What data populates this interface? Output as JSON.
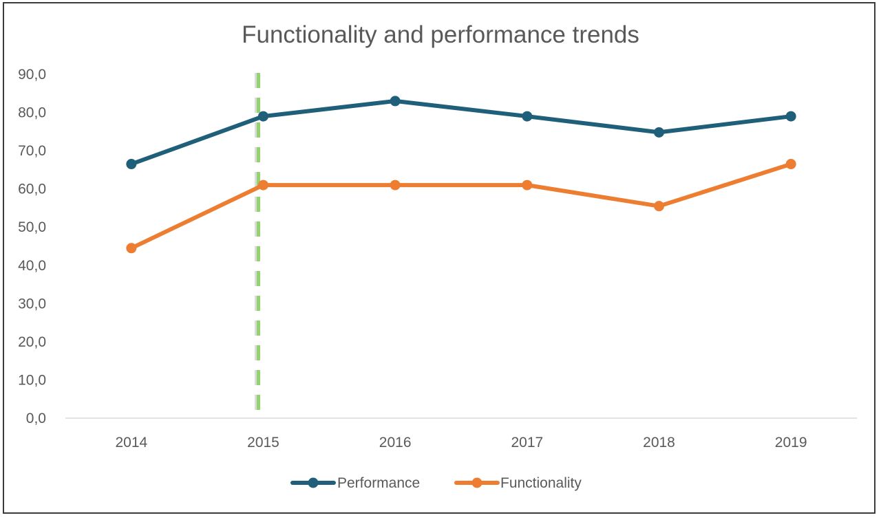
{
  "chart_data": {
    "type": "line",
    "title": "Functionality and performance trends",
    "categories": [
      "2014",
      "2015",
      "2016",
      "2017",
      "2018",
      "2019"
    ],
    "series": [
      {
        "name": "Performance",
        "color": "#1f5f7a",
        "values": [
          66.5,
          79.0,
          83.0,
          79.0,
          74.8,
          79.0
        ]
      },
      {
        "name": "Functionality",
        "color": "#ed7d31",
        "values": [
          44.5,
          61.0,
          61.0,
          61.0,
          55.5,
          66.5
        ]
      }
    ],
    "ylim": [
      0,
      90
    ],
    "y_ticks": [
      "0,0",
      "10,0",
      "20,0",
      "30,0",
      "40,0",
      "50,0",
      "60,0",
      "70,0",
      "80,0",
      "90,0"
    ],
    "gridlines": false,
    "legend_position": "bottom",
    "annotations": [
      {
        "type": "vertical-dashed-line",
        "at_category": "2015",
        "color": "#92d36e"
      }
    ]
  }
}
